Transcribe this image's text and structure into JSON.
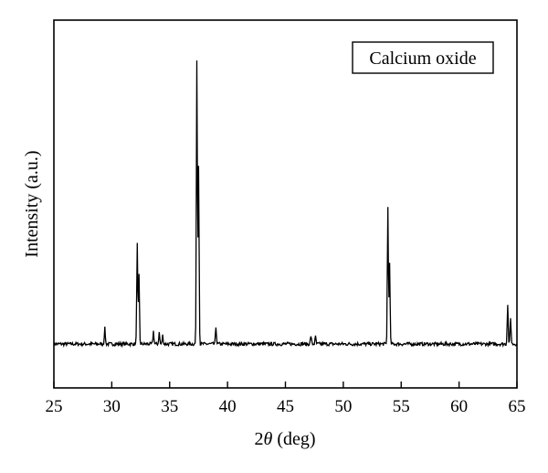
{
  "chart_data": {
    "type": "line",
    "title": "",
    "xlabel_prefix": "2",
    "xlabel_symbol": "θ",
    "xlabel_suffix": " (deg)",
    "ylabel": "Intensity (a.u.)",
    "xlim": [
      25,
      65
    ],
    "ylim": [
      -8,
      100
    ],
    "x_ticks": [
      25,
      30,
      35,
      40,
      45,
      50,
      55,
      60,
      65
    ],
    "y_ticks_visible": false,
    "grid": false,
    "legend": {
      "text": "Calcium oxide",
      "placement": "top-right"
    },
    "line_color": "#000000",
    "baseline": 1.0,
    "peaks": [
      {
        "x": 29.4,
        "y": 5.5
      },
      {
        "x": 32.2,
        "y": 35
      },
      {
        "x": 32.35,
        "y": 24
      },
      {
        "x": 33.6,
        "y": 4.5
      },
      {
        "x": 34.1,
        "y": 4
      },
      {
        "x": 34.4,
        "y": 3
      },
      {
        "x": 37.35,
        "y": 100
      },
      {
        "x": 37.5,
        "y": 63
      },
      {
        "x": 39.0,
        "y": 6
      },
      {
        "x": 47.2,
        "y": 3
      },
      {
        "x": 47.6,
        "y": 2.5
      },
      {
        "x": 53.85,
        "y": 48
      },
      {
        "x": 54.0,
        "y": 28
      },
      {
        "x": 64.2,
        "y": 14
      },
      {
        "x": 64.45,
        "y": 9
      }
    ]
  }
}
